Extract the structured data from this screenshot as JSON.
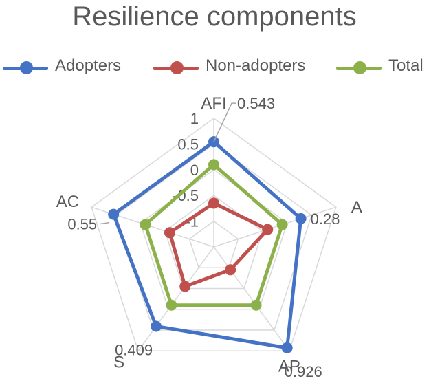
{
  "chart_data": {
    "type": "radar",
    "title": "Resilience components",
    "axes": [
      "AFI",
      "A",
      "AP",
      "S",
      "AC"
    ],
    "tick_labels": [
      "1",
      "0.5",
      "0",
      "-0.5",
      "-1"
    ],
    "range": [
      -1.5,
      1
    ],
    "grid": true,
    "legend_position": "top",
    "series": [
      {
        "name": "Adopters",
        "color": "#4472C4",
        "values": [
          0.543,
          0.28,
          0.926,
          0.409,
          0.55
        ]
      },
      {
        "name": "Non-adopters",
        "color": "#C0504D",
        "values": [
          -0.65,
          -0.4,
          -0.95,
          -0.55,
          -0.6
        ]
      },
      {
        "name": "Total",
        "color": "#8CB14A",
        "values": [
          0.1,
          -0.1,
          -0.1,
          -0.1,
          -0.1
        ]
      }
    ],
    "data_labels": [
      "0.543",
      "0.28",
      "0.926",
      "0.409",
      "0.55"
    ]
  }
}
